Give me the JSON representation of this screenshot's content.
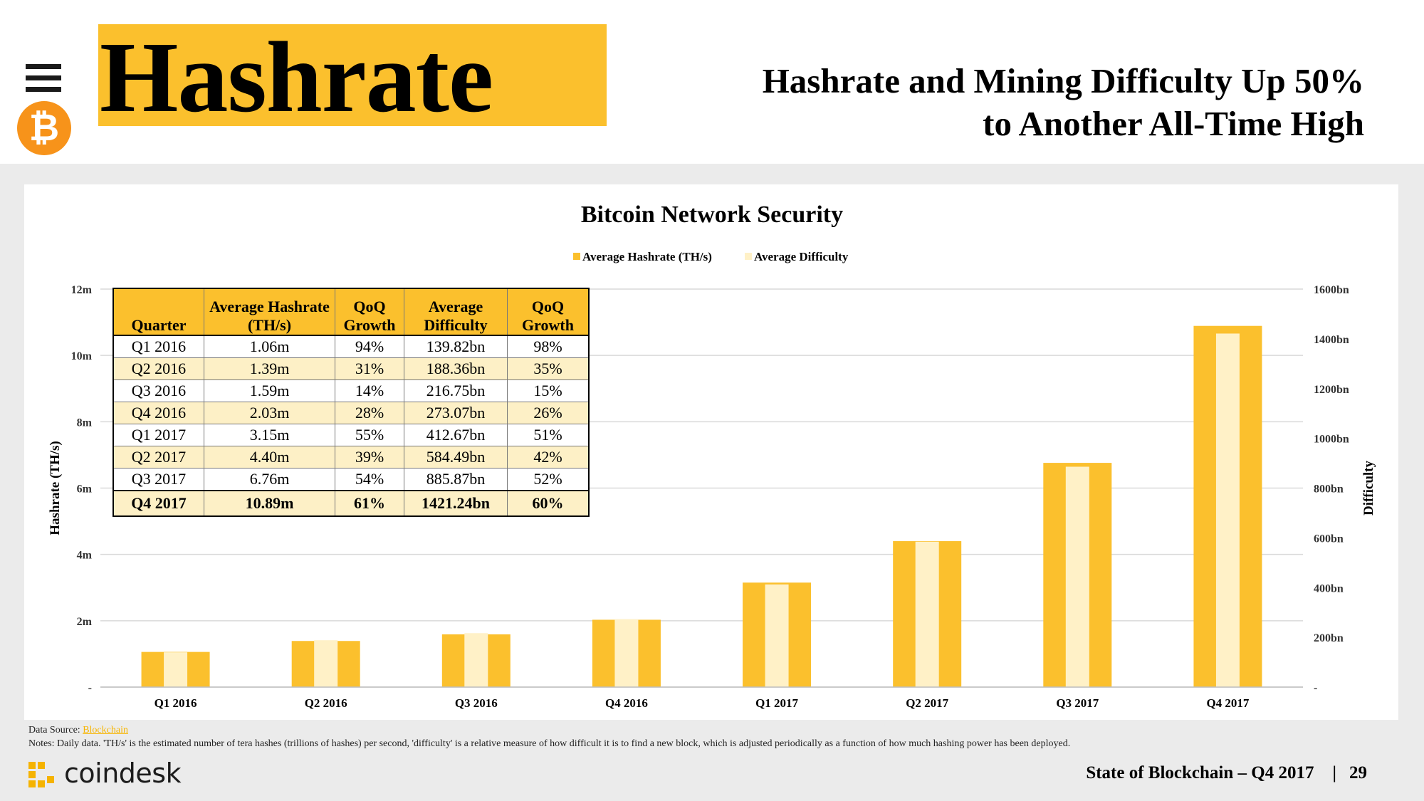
{
  "header": {
    "title": "Hashrate",
    "subtitle_line1": "Hashrate and Mining Difficulty Up 50%",
    "subtitle_line2": "to Another All-Time High",
    "btc_glyph": "₿"
  },
  "chart_data": {
    "type": "bar",
    "title": "Bitcoin Network Security",
    "categories": [
      "Q1 2016",
      "Q2 2016",
      "Q3 2016",
      "Q4 2016",
      "Q1 2017",
      "Q2 2017",
      "Q3 2017",
      "Q4 2017"
    ],
    "series": [
      {
        "name": "Average Hashrate (TH/s)",
        "axis": "left",
        "color": "#fbc02d",
        "values": [
          1.06,
          1.39,
          1.59,
          2.03,
          3.15,
          4.4,
          6.76,
          10.89
        ]
      },
      {
        "name": "Average Difficulty",
        "axis": "right",
        "color": "#fff1c7",
        "values": [
          139.82,
          188.36,
          216.75,
          273.07,
          412.67,
          584.49,
          885.87,
          1421.24
        ]
      }
    ],
    "ylabel": "Hashrate (TH/s)",
    "y2label": "Difficulty",
    "ylim": [
      0,
      12
    ],
    "y2lim": [
      0,
      1600
    ],
    "y_ticks": [
      {
        "value": 0,
        "label": "-"
      },
      {
        "value": 2,
        "label": "2m"
      },
      {
        "value": 4,
        "label": "4m"
      },
      {
        "value": 6,
        "label": "6m"
      },
      {
        "value": 8,
        "label": "8m"
      },
      {
        "value": 10,
        "label": "10m"
      },
      {
        "value": 12,
        "label": "12m"
      }
    ],
    "y2_ticks": [
      {
        "value": 0,
        "label": "-"
      },
      {
        "value": 200,
        "label": "200bn"
      },
      {
        "value": 400,
        "label": "400bn"
      },
      {
        "value": 600,
        "label": "600bn"
      },
      {
        "value": 800,
        "label": "800bn"
      },
      {
        "value": 1000,
        "label": "1000bn"
      },
      {
        "value": 1200,
        "label": "1200bn"
      },
      {
        "value": 1400,
        "label": "1400bn"
      },
      {
        "value": 1600,
        "label": "1600bn"
      }
    ],
    "legend": "top-center",
    "grid": true
  },
  "table": {
    "headers": [
      [
        "Quarter"
      ],
      [
        "Average Hashrate",
        "(TH/s)"
      ],
      [
        "QoQ",
        "Growth"
      ],
      [
        "Average",
        "Difficulty"
      ],
      [
        "QoQ",
        "Growth"
      ]
    ],
    "rows": [
      [
        "Q1 2016",
        "1.06m",
        "94%",
        "139.82bn",
        "98%"
      ],
      [
        "Q2 2016",
        "1.39m",
        "31%",
        "188.36bn",
        "35%"
      ],
      [
        "Q3 2016",
        "1.59m",
        "14%",
        "216.75bn",
        "15%"
      ],
      [
        "Q4 2016",
        "2.03m",
        "28%",
        "273.07bn",
        "26%"
      ],
      [
        "Q1 2017",
        "3.15m",
        "55%",
        "412.67bn",
        "51%"
      ],
      [
        "Q2 2017",
        "4.40m",
        "39%",
        "584.49bn",
        "42%"
      ],
      [
        "Q3 2017",
        "6.76m",
        "54%",
        "885.87bn",
        "52%"
      ],
      [
        "Q4 2017",
        "10.89m",
        "61%",
        "1421.24bn",
        "60%"
      ]
    ]
  },
  "footer": {
    "source_label": "Data Source: ",
    "source_link": "Blockchain",
    "notes": "Notes: Daily data. 'TH/s' is the estimated number of tera hashes (trillions of hashes) per second, 'difficulty' is a relative measure of how difficult it is to find a new block, which is adjusted periodically as a function of how much hashing power has been deployed.",
    "brand": "coindesk",
    "report": "State of Blockchain – Q4 2017",
    "separator": "|",
    "page_number": "29"
  }
}
